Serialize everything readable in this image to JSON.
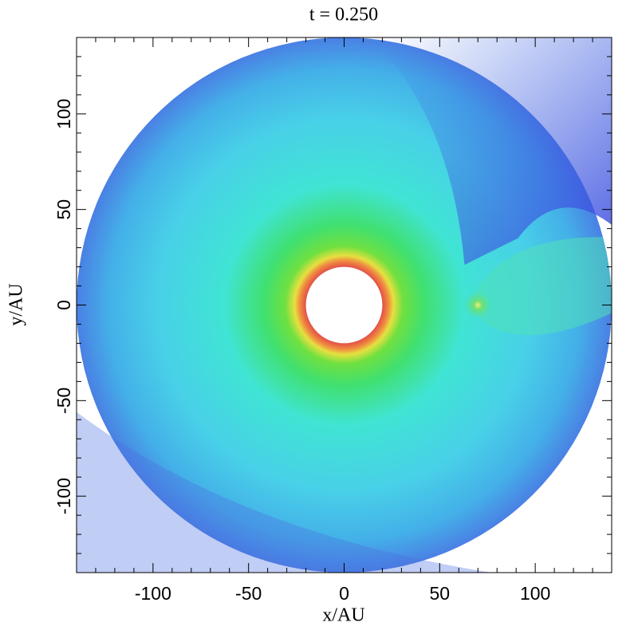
{
  "chart_data": {
    "type": "disk_map",
    "title": "t = 0.250",
    "xlabel": "x/AU",
    "ylabel": "y/AU",
    "xlim": [
      -140,
      140
    ],
    "ylim": [
      -140,
      140
    ],
    "xticks": [
      -100,
      -50,
      0,
      50,
      100
    ],
    "yticks": [
      -100,
      -50,
      0,
      50,
      100
    ],
    "xminorticks": [
      -140,
      -130,
      -120,
      -110,
      -90,
      -80,
      -70,
      -60,
      -40,
      -30,
      -20,
      -10,
      10,
      20,
      30,
      40,
      60,
      70,
      80,
      90,
      110,
      120,
      130,
      140
    ],
    "yminorticks": [
      -140,
      -130,
      -120,
      -110,
      -90,
      -80,
      -70,
      -60,
      -40,
      -30,
      -20,
      -10,
      10,
      20,
      30,
      40,
      60,
      70,
      80,
      90,
      110,
      120,
      130,
      140
    ],
    "disk": {
      "inner_radius": 20,
      "outer_radius": 140
    },
    "planet": {
      "x": 70,
      "y": 0
    }
  }
}
